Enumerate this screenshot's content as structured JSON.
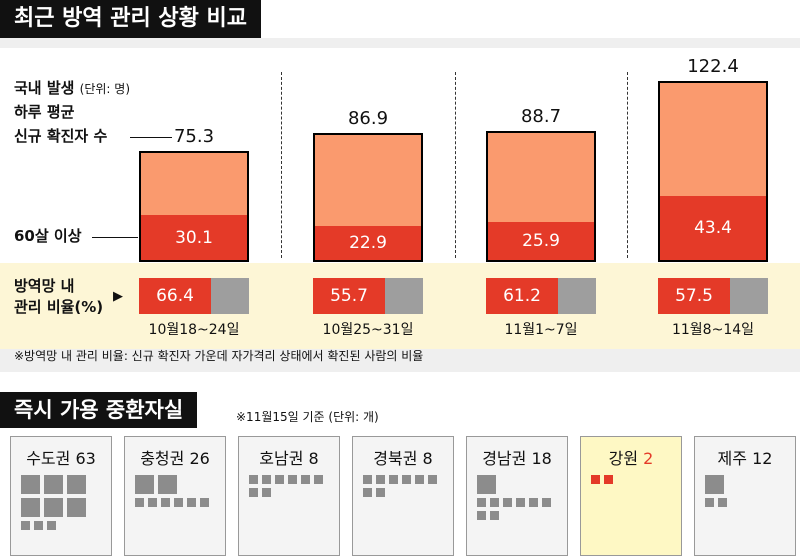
{
  "title": "최근 방역 관리 상황 비교",
  "labels": {
    "daily_cases": "국내 발생",
    "unit": "(단위: 명)",
    "daily_avg": "하루 평균",
    "new_cases": "신규 확진자 수",
    "over60": "60살 이상",
    "ratio_line1": "방역망 내",
    "ratio_line2": "관리 비율(%)",
    "ratio_arrow": "▶"
  },
  "footnote": "※방역망 내 관리 비율: 신규 확진자 가운데 자가격리 상태에서 확진된 사람의 비율",
  "beds": {
    "title": "즉시 가용 중환자실",
    "note": "※11월15일 기준 (단위: 개)",
    "regions": [
      {
        "name": "수도권",
        "count": "63",
        "value": 63
      },
      {
        "name": "충청권",
        "count": "26",
        "value": 26
      },
      {
        "name": "호남권",
        "count": "8",
        "value": 8
      },
      {
        "name": "경북권",
        "count": "8",
        "value": 8
      },
      {
        "name": "경남권",
        "count": "18",
        "value": 18
      },
      {
        "name": "강원",
        "count": "2",
        "value": 2,
        "highlight": true
      },
      {
        "name": "제주",
        "count": "12",
        "value": 12
      }
    ]
  },
  "chart_data": {
    "type": "bar",
    "categories": [
      "10월18~24일",
      "10월25~31일",
      "11월1~7일",
      "11월8~14일"
    ],
    "series": [
      {
        "name": "신규 확진자 수",
        "values": [
          75.3,
          86.9,
          88.7,
          122.4
        ],
        "labels": [
          "75.3",
          "86.9",
          "88.7",
          "122.4"
        ]
      },
      {
        "name": "60살 이상",
        "values": [
          30.1,
          22.9,
          25.9,
          43.4
        ],
        "labels": [
          "30.1",
          "22.9",
          "25.9",
          "43.4"
        ]
      },
      {
        "name": "방역망 내 관리 비율(%)",
        "values": [
          66.4,
          55.7,
          61.2,
          57.5
        ],
        "labels": [
          "66.4",
          "55.7",
          "61.2",
          "57.5"
        ]
      }
    ]
  },
  "colors": {
    "total": "#fa9a6e",
    "over60": "#e43a28",
    "ratio": "#e43a28",
    "ratio_rest": "#9e9e9e",
    "bed": "#8c8c8c",
    "highlight_bg": "#fef8c4"
  }
}
